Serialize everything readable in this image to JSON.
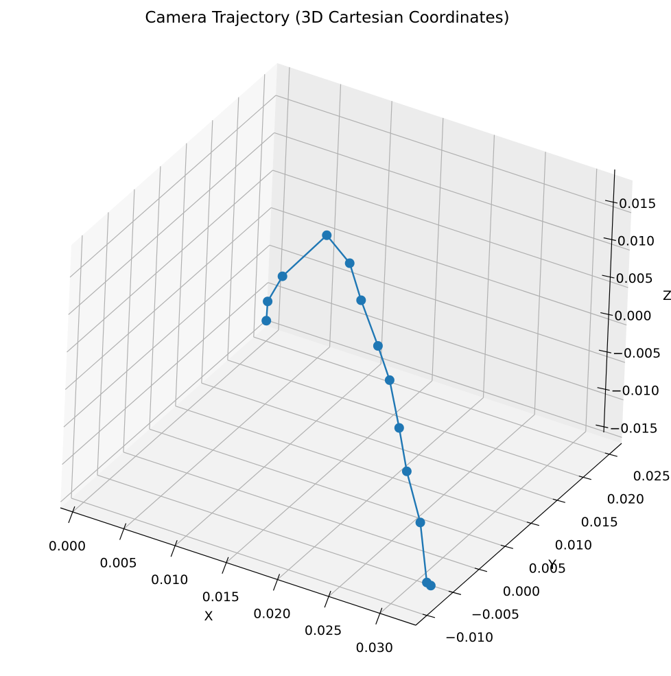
{
  "chart_data": {
    "type": "line",
    "projection": "3d",
    "title": "Camera Trajectory (3D Cartesian Coordinates)",
    "xlabel": "X",
    "ylabel": "Y",
    "zlabel": "Z",
    "x_ticks": [
      "0.000",
      "0.005",
      "0.010",
      "0.015",
      "0.020",
      "0.025",
      "0.030"
    ],
    "y_ticks": [
      "−0.010",
      "−0.005",
      "0.000",
      "0.005",
      "0.010",
      "0.015",
      "0.020",
      "0.025"
    ],
    "z_ticks": [
      "−0.015",
      "−0.010",
      "−0.005",
      "0.000",
      "0.005",
      "0.010",
      "0.015"
    ],
    "x_tick_values": [
      0.0,
      0.005,
      0.01,
      0.015,
      0.02,
      0.025,
      0.03
    ],
    "y_tick_values": [
      -0.01,
      -0.005,
      0.0,
      0.005,
      0.01,
      0.015,
      0.02,
      0.025
    ],
    "z_tick_values": [
      -0.015,
      -0.01,
      -0.005,
      0.0,
      0.005,
      0.01,
      0.015
    ],
    "xlim": [
      -0.0012,
      0.0335
    ],
    "ylim": [
      -0.0121,
      0.0274
    ],
    "zlim": [
      -0.0158,
      0.0193
    ],
    "grid": true,
    "marker": "circle",
    "color": "#1f77b4",
    "series": [
      {
        "x": [
          0.0014,
          0.0,
          0.0006,
          0.0048,
          0.0092,
          0.0131,
          0.0167,
          0.0197,
          0.0226,
          0.0253,
          0.0284,
          0.0312,
          0.0315
        ],
        "y": [
          0.022,
          0.025,
          0.0265,
          0.0263,
          0.022,
          0.0165,
          0.0128,
          0.0092,
          0.0055,
          0.0018,
          -0.0015,
          -0.0055,
          -0.0053
        ],
        "z": [
          -0.0106,
          -0.0105,
          -0.0078,
          -0.0003,
          0.0006,
          0.0008,
          -0.0014,
          -0.0024,
          -0.0052,
          -0.0075,
          -0.0109,
          -0.0152,
          -0.0156
        ]
      }
    ]
  }
}
